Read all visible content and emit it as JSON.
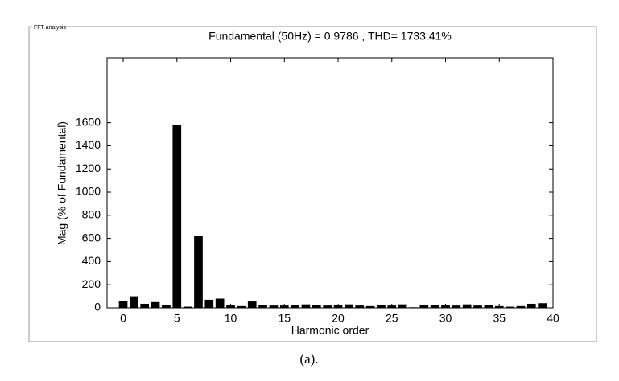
{
  "panel_label": "FFT analysis",
  "caption": "(a).",
  "chart_data": {
    "type": "bar",
    "title": "Fundamental (50Hz) = 0.9786 , THD= 1733.41%",
    "x_label": "Harmonic order",
    "y_label": "Mag (% of Fundamental)",
    "x": [
      0,
      1,
      2,
      3,
      4,
      5,
      6,
      7,
      8,
      9,
      10,
      11,
      12,
      13,
      14,
      15,
      16,
      17,
      18,
      19,
      20,
      21,
      22,
      23,
      24,
      25,
      26,
      27,
      28,
      29,
      30,
      31,
      32,
      33,
      34,
      35,
      36,
      37,
      38,
      39
    ],
    "values": [
      60,
      100,
      35,
      50,
      25,
      1580,
      10,
      625,
      70,
      80,
      25,
      15,
      55,
      25,
      20,
      20,
      25,
      30,
      25,
      20,
      25,
      30,
      20,
      15,
      25,
      20,
      30,
      5,
      25,
      25,
      25,
      20,
      30,
      20,
      25,
      15,
      10,
      15,
      35,
      40
    ],
    "color": "#000000",
    "xlim": [
      -1.5,
      40
    ],
    "xticks": [
      0,
      5,
      10,
      15,
      20,
      25,
      30,
      35,
      40
    ],
    "ylim": [
      0,
      2160
    ],
    "yticks": [
      0,
      200,
      400,
      600,
      800,
      1000,
      1200,
      1400,
      1600
    ]
  }
}
